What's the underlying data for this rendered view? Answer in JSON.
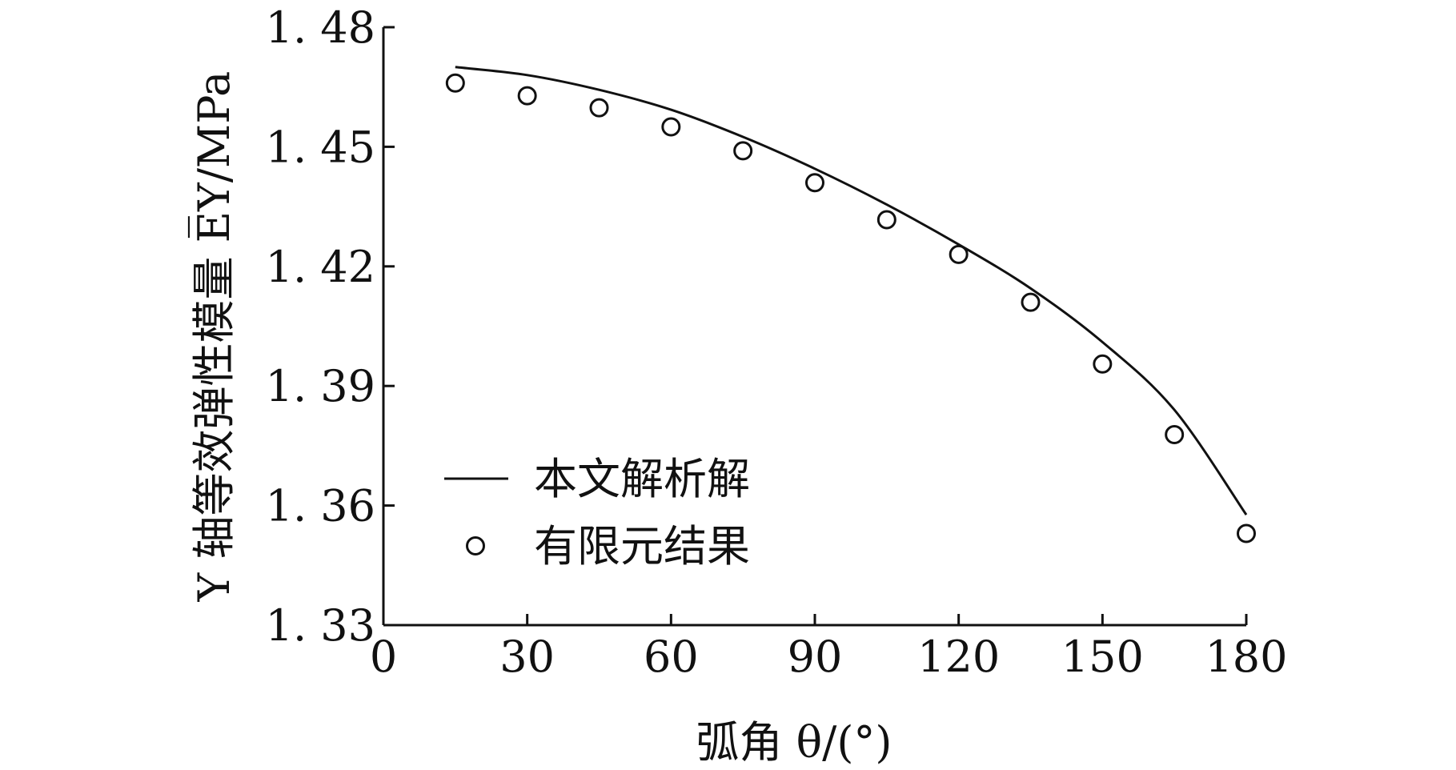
{
  "chart_data": {
    "type": "line",
    "xlabel": "弧角 θ/(°)",
    "ylabel": "Y 轴等效弹性模量 E̅Y/MPa",
    "xlim": [
      0,
      180
    ],
    "ylim": [
      1.33,
      1.48
    ],
    "x_ticks": [
      0,
      30,
      60,
      90,
      120,
      150,
      180
    ],
    "x_tick_labels": [
      "0",
      "30",
      "60",
      "90",
      "120",
      "150",
      "180"
    ],
    "y_ticks": [
      1.33,
      1.36,
      1.39,
      1.42,
      1.45,
      1.48
    ],
    "y_tick_labels": [
      "1. 33",
      "1. 36",
      "1. 39",
      "1. 42",
      "1. 45",
      "1. 48"
    ],
    "legend_position": "lower-left",
    "grid": false,
    "series": [
      {
        "name": "本文解析解",
        "style": "line",
        "x": [
          15,
          30,
          45,
          60,
          75,
          90,
          105,
          120,
          135,
          150,
          165,
          180
        ],
        "y": [
          1.47,
          1.468,
          1.4643,
          1.4593,
          1.4525,
          1.4445,
          1.4355,
          1.4255,
          1.4145,
          1.401,
          1.384,
          1.3577
        ]
      },
      {
        "name": "有限元结果",
        "style": "marker",
        "x": [
          15,
          30,
          45,
          60,
          75,
          90,
          105,
          120,
          135,
          150,
          165,
          180
        ],
        "y": [
          1.466,
          1.4628,
          1.4598,
          1.455,
          1.449,
          1.441,
          1.4317,
          1.423,
          1.411,
          1.3955,
          1.3778,
          1.353
        ]
      }
    ]
  }
}
